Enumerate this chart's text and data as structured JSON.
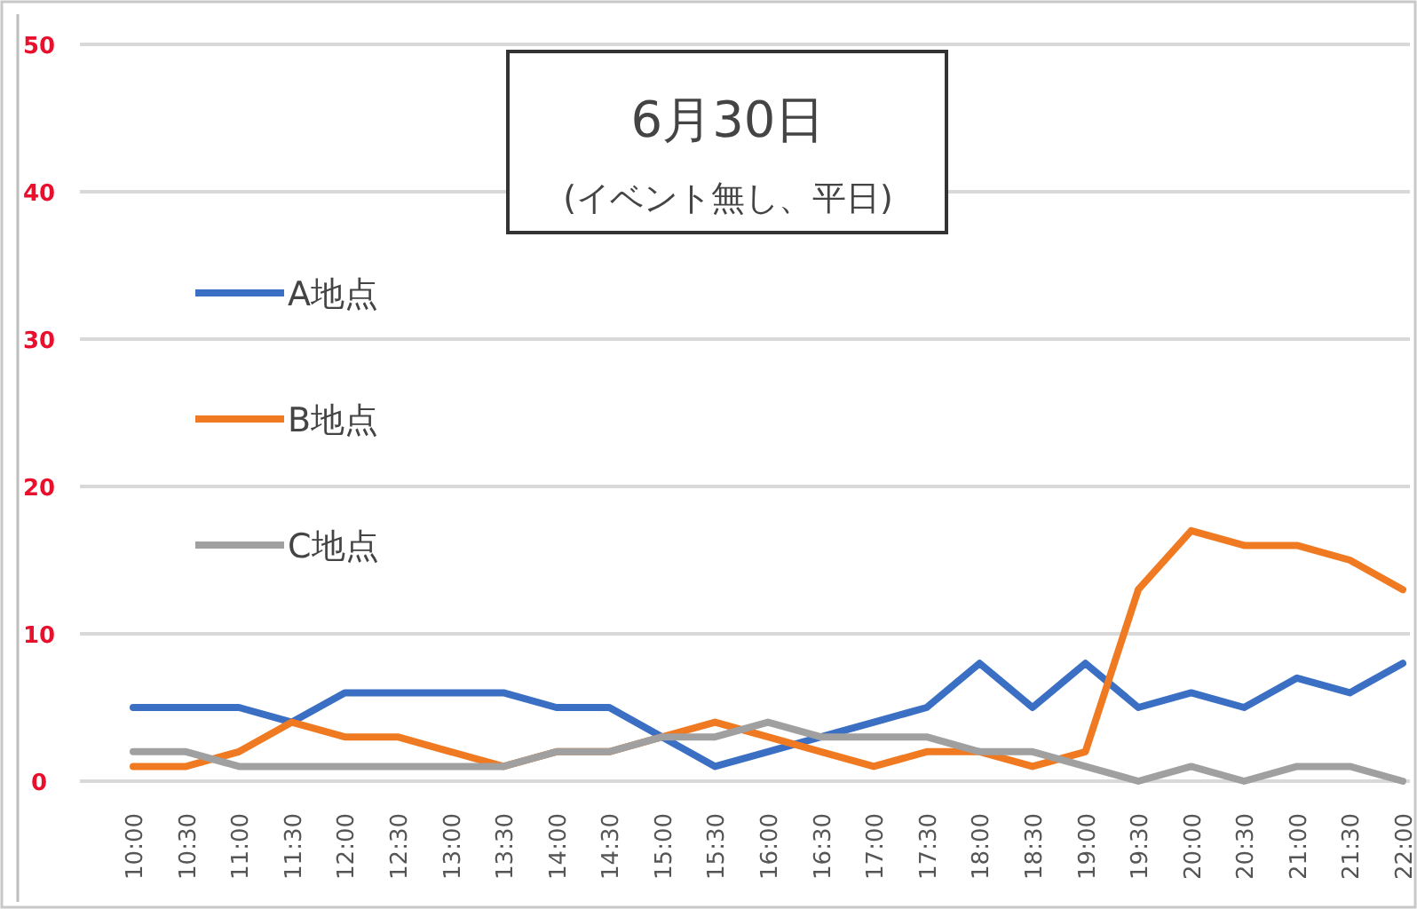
{
  "chart_data": {
    "type": "line",
    "title": "6月30日",
    "subtitle": "(イベント無し、平日)",
    "categories": [
      "10:00",
      "10:30",
      "11:00",
      "11:30",
      "12:00",
      "12:30",
      "13:00",
      "13:30",
      "14:00",
      "14:30",
      "15:00",
      "15:30",
      "16:00",
      "16:30",
      "17:00",
      "17:30",
      "18:00",
      "18:30",
      "19:00",
      "19:30",
      "20:00",
      "20:30",
      "21:00",
      "21:30",
      "22:00"
    ],
    "series": [
      {
        "name": "A地点",
        "color": "#3a6fc4",
        "values": [
          5,
          5,
          5,
          4,
          6,
          6,
          6,
          6,
          5,
          5,
          3,
          1,
          2,
          3,
          4,
          5,
          8,
          5,
          8,
          5,
          6,
          5,
          7,
          6,
          8
        ]
      },
      {
        "name": "B地点",
        "color": "#f07a22",
        "values": [
          1,
          1,
          2,
          4,
          3,
          3,
          2,
          1,
          2,
          2,
          3,
          4,
          3,
          2,
          1,
          2,
          2,
          1,
          2,
          13,
          17,
          16,
          16,
          15,
          13
        ]
      },
      {
        "name": "C地点",
        "color": "#a0a0a0",
        "values": [
          2,
          2,
          1,
          1,
          1,
          1,
          1,
          1,
          2,
          2,
          3,
          3,
          4,
          3,
          3,
          3,
          2,
          2,
          1,
          0,
          1,
          0,
          1,
          1,
          0
        ]
      }
    ],
    "ylim": [
      0,
      50
    ],
    "yticks": [
      0,
      10,
      20,
      30,
      40,
      50
    ],
    "grid": "y",
    "legend": "left",
    "marker": "none",
    "line_style": "solid"
  }
}
